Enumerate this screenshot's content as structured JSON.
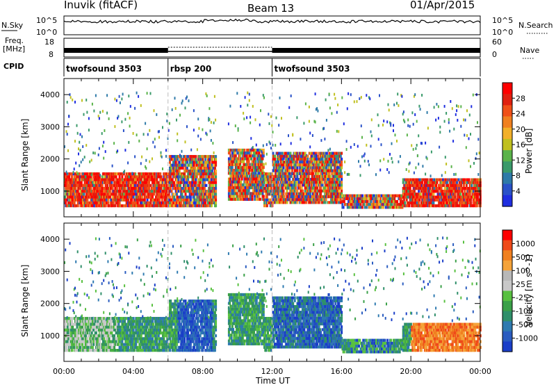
{
  "header": {
    "station": "Inuvik (fitACF)",
    "beam": "Beam 13",
    "date": "01/Apr/2015"
  },
  "strip_labels": {
    "nsky": "N.Sky",
    "nsearch": "N.Search",
    "freq_line1": "Freq.",
    "freq_line2": "[MHz]",
    "nave": "Nave",
    "cpid": "CPID",
    "nsky_ticks": [
      "10^5",
      "10^0"
    ],
    "nsearch_ticks": [
      "10^5",
      "10^0"
    ],
    "freq_ticks": [
      "18",
      "8"
    ],
    "nave_ticks": [
      "60",
      "0"
    ]
  },
  "cpid_segments": [
    {
      "label": "twofsound 3503",
      "start_h": 0,
      "end_h": 6
    },
    {
      "label": "rbsp 200",
      "start_h": 6,
      "end_h": 12
    },
    {
      "label": "twofsound 3503",
      "start_h": 12,
      "end_h": 24
    }
  ],
  "chart_data": [
    {
      "type": "heatmap",
      "title": "",
      "ylabel": "Slant Range [km]",
      "xlabel": "",
      "xlim": [
        0,
        24
      ],
      "ylim": [
        200,
        4500
      ],
      "y_ticks": [
        1000,
        2000,
        3000,
        4000
      ],
      "colorbar_label": "Power [dB]",
      "colorbar_ticks": [
        "4",
        "8",
        "12",
        "16",
        "20",
        "24",
        "28"
      ],
      "colors": [
        "#1f2ee0",
        "#2a52c8",
        "#2e7aa8",
        "#3a9a6a",
        "#5ab34a",
        "#c0c020",
        "#f2b02a",
        "#f08020",
        "#f05018",
        "#e02010",
        "#ff0000"
      ]
    },
    {
      "type": "heatmap",
      "title": "",
      "ylabel": "Slant Range [km]",
      "xlabel": "Time UT",
      "xlim": [
        0,
        24
      ],
      "ylim": [
        200,
        4500
      ],
      "y_ticks": [
        1000,
        2000,
        3000,
        4000
      ],
      "x_tick_labels": [
        "00:00",
        "04:00",
        "08:00",
        "12:00",
        "16:00",
        "20:00",
        "00:00"
      ],
      "colorbar_label": "Velocity [m s^-1]",
      "colorbar_ticks": [
        "1000",
        "500",
        "100",
        "25",
        "-25",
        "-100",
        "-500",
        "-1000"
      ],
      "colors": [
        "#1a3ec8",
        "#2a5cc0",
        "#2e7ab0",
        "#2f8f6a",
        "#3aa048",
        "#58c040",
        "#c8c8c8",
        "#b8b8b8",
        "#f5a33a",
        "#f08020",
        "#ef4a1a",
        "#ff0000"
      ]
    }
  ]
}
